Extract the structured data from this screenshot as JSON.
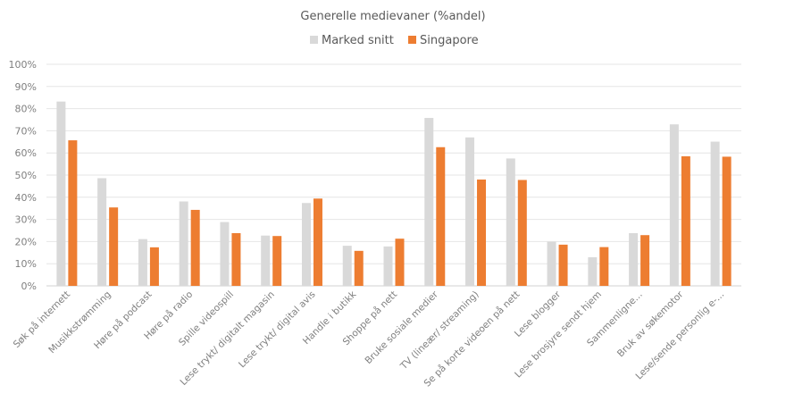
{
  "chart_data": {
    "type": "bar",
    "title": "Generelle medievaner (%andel)",
    "xlabel": "",
    "ylabel": "",
    "ylim": [
      0,
      100
    ],
    "yticks": [
      "0%",
      "10%",
      "20%",
      "30%",
      "40%",
      "50%",
      "60%",
      "70%",
      "80%",
      "90%",
      "100%"
    ],
    "grid": true,
    "legend_position": "top-center",
    "categories": [
      "Søk på internett",
      "Musikkstrømming",
      "Høre på podcast",
      "Høre på radio",
      "Spille videospill",
      "Lese trykt/ digitalt magasin",
      "Lese trykt/ digital avis",
      "Handle i butikk",
      "Shoppe på nett",
      "Bruke sosiale medier",
      "TV (lineær/ streaming)",
      "Se på korte videoen på nett",
      "Lese blogger",
      "Lese brosjyre sendt hjem",
      "Sammenligne...",
      "Bruk av søkemotor",
      "Lese/sende personlig e-..."
    ],
    "series": [
      {
        "name": "Marked snitt",
        "color": "#d9d9d9",
        "values": [
          83.2,
          48.6,
          21.1,
          38.1,
          28.8,
          22.7,
          37.4,
          18.1,
          17.8,
          75.8,
          67.0,
          57.5,
          19.9,
          12.9,
          23.8,
          72.9,
          65.1
        ]
      },
      {
        "name": "Singapore",
        "color": "#ed7d31",
        "values": [
          65.7,
          35.4,
          17.4,
          34.3,
          23.8,
          22.5,
          39.4,
          15.8,
          21.3,
          62.6,
          48.0,
          47.8,
          18.6,
          17.5,
          22.9,
          58.5,
          58.3
        ]
      }
    ]
  }
}
